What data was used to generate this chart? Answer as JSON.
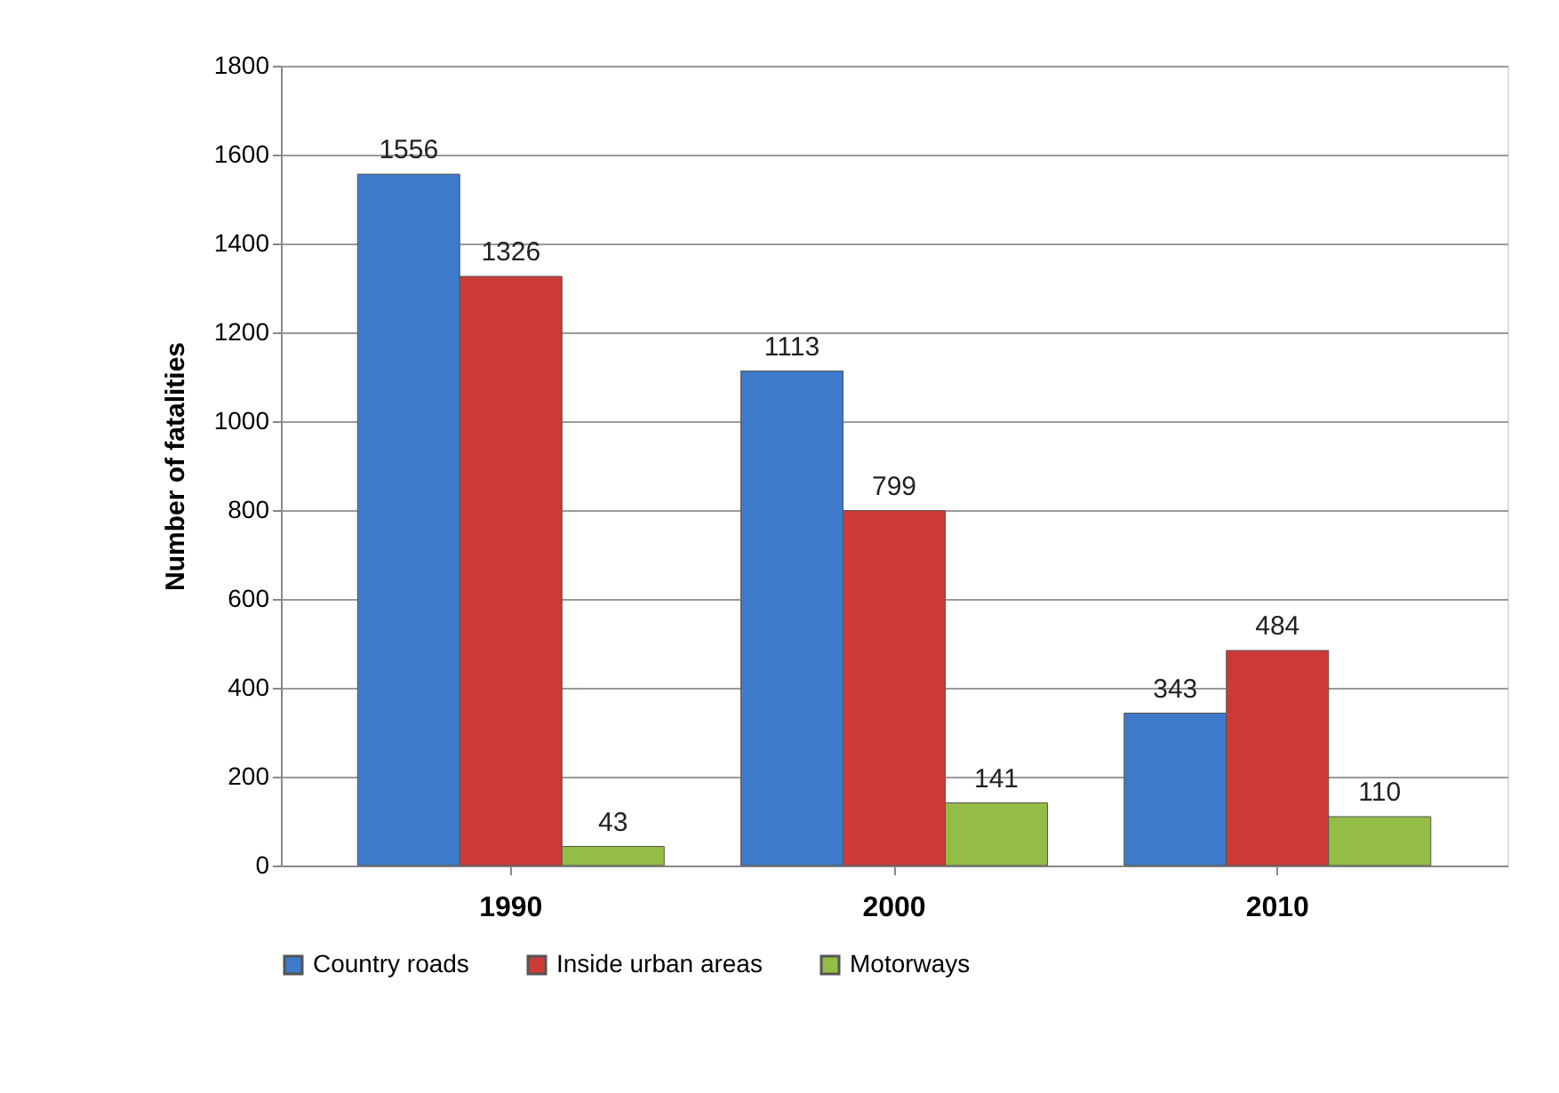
{
  "chart_data": {
    "type": "bar",
    "ylabel": "Number of fatalities",
    "categories": [
      "1990",
      "2000",
      "2010"
    ],
    "series": [
      {
        "name": "Country roads",
        "color": "#3d7ac9",
        "values": [
          1556,
          1113,
          343
        ]
      },
      {
        "name": "Inside urban areas",
        "color": "#cc3a36",
        "values": [
          1326,
          799,
          484
        ]
      },
      {
        "name": "Motorways",
        "color": "#94bd45",
        "values": [
          43,
          141,
          110
        ]
      }
    ],
    "ylim": [
      0,
      1800
    ],
    "yticks": [
      0,
      200,
      400,
      600,
      800,
      1000,
      1200,
      1400,
      1600,
      1800
    ],
    "grid": "y",
    "legend": "bottom",
    "data_labels": true
  }
}
